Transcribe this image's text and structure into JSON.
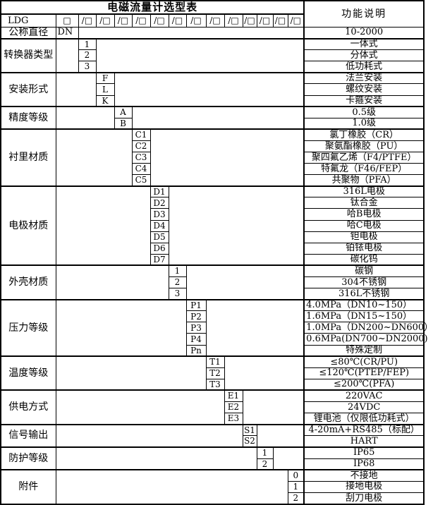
{
  "colors": {
    "border": "#000000",
    "background": "#ffffff",
    "text": "#000000"
  },
  "header": {
    "title": "电磁流量计选型表",
    "function_column_header": "功能说明"
  },
  "model_row": {
    "label": "LDG",
    "base_box": "□",
    "segment_box": "/□",
    "segment_count": 13
  },
  "diameter_row": {
    "label": "公称直径",
    "code": "DN",
    "desc": "10-2000"
  },
  "blocks": [
    {
      "label": "转换器类型",
      "column": 2,
      "items": [
        {
          "code": "1",
          "desc": "一体式"
        },
        {
          "code": "2",
          "desc": "分体式"
        },
        {
          "code": "3",
          "desc": "低功耗式"
        }
      ]
    },
    {
      "label": "安装形式",
      "column": 3,
      "items": [
        {
          "code": "F",
          "desc": "法兰安装"
        },
        {
          "code": "L",
          "desc": "螺纹安装"
        },
        {
          "code": "K",
          "desc": "卡箍安装"
        }
      ]
    },
    {
      "label": "精度等级",
      "column": 4,
      "items": [
        {
          "code": "A",
          "desc": "0.5级"
        },
        {
          "code": "B",
          "desc": "1.0级"
        }
      ]
    },
    {
      "label": "衬里材质",
      "column": 5,
      "items": [
        {
          "code": "C1",
          "desc": "氯丁橡胶（CR）"
        },
        {
          "code": "C2",
          "desc": "聚氨酯橡胶（PU）"
        },
        {
          "code": "C3",
          "desc": "聚四氟乙烯（F4/PTFE）"
        },
        {
          "code": "C4",
          "desc": "特氟龙（F46/FEP）"
        },
        {
          "code": "C5",
          "desc": "共聚物（PFA）"
        }
      ]
    },
    {
      "label": "电极材质",
      "column": 6,
      "items": [
        {
          "code": "D1",
          "desc": "316L电极"
        },
        {
          "code": "D2",
          "desc": "钛合金"
        },
        {
          "code": "D3",
          "desc": "哈B电极"
        },
        {
          "code": "D4",
          "desc": "哈C电极"
        },
        {
          "code": "D5",
          "desc": "钽电极"
        },
        {
          "code": "D6",
          "desc": "铂铱电极"
        },
        {
          "code": "D7",
          "desc": "碳化钨"
        }
      ]
    },
    {
      "label": "外壳材质",
      "column": 7,
      "items": [
        {
          "code": "1",
          "desc": "碳钢"
        },
        {
          "code": "2",
          "desc": "304不锈钢"
        },
        {
          "code": "3",
          "desc": "316L不锈钢"
        }
      ]
    },
    {
      "label": "压力等级",
      "column": 8,
      "items": [
        {
          "code": "P1",
          "desc": "4.0MPa（DN10~150）",
          "align": "left"
        },
        {
          "code": "P2",
          "desc": "1.6MPa（DN15~150）",
          "align": "left"
        },
        {
          "code": "P3",
          "desc": "1.0MPa（DN200~DN600）",
          "align": "left"
        },
        {
          "code": "P4",
          "desc": "0.6MPa(DN700~DN2000)",
          "align": "left"
        },
        {
          "code": "Pn",
          "desc": "特殊定制"
        }
      ]
    },
    {
      "label": "温度等级",
      "column": 9,
      "items": [
        {
          "code": "T1",
          "desc": "≤80℃(CR/PU)"
        },
        {
          "code": "T2",
          "desc": "≤120℃(PTEP/FEP)"
        },
        {
          "code": "T3",
          "desc": "≤200℃(PFA)"
        }
      ]
    },
    {
      "label": "供电方式",
      "column": 10,
      "items": [
        {
          "code": "E1",
          "desc": "220VAC"
        },
        {
          "code": "E2",
          "desc": "24VDC"
        },
        {
          "code": "E3",
          "desc": "锂电池（仅限低功耗式）"
        }
      ]
    },
    {
      "label": "信号输出",
      "column": 11,
      "items": [
        {
          "code": "S1",
          "desc": "4-20mA+RS485（标配）"
        },
        {
          "code": "S2",
          "desc": "HART"
        }
      ]
    },
    {
      "label": "防护等级",
      "column": 12,
      "items": [
        {
          "code": "1",
          "desc": "IP65"
        },
        {
          "code": "2",
          "desc": "IP68"
        }
      ]
    },
    {
      "label": "附件",
      "column": 14,
      "items": [
        {
          "code": "0",
          "desc": "不接地"
        },
        {
          "code": "1",
          "desc": "接地电极"
        },
        {
          "code": "2",
          "desc": "刮刀电极"
        }
      ]
    }
  ]
}
